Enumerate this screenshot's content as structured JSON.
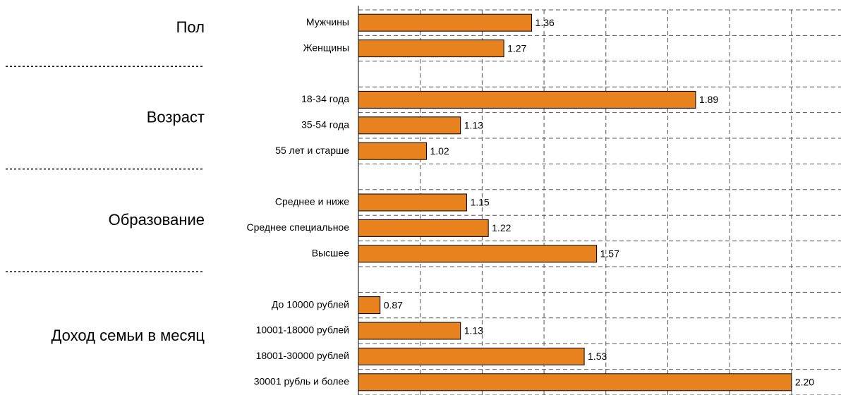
{
  "chart_data": {
    "type": "bar",
    "orientation": "horizontal",
    "color": "#e8821e",
    "xlim": [
      0.8,
      2.36
    ],
    "xticks": [
      0.8,
      1.0,
      1.2,
      1.4,
      1.6,
      1.8,
      2.0,
      2.2
    ],
    "grid": true,
    "groups": [
      {
        "name": "Пол",
        "categories": [
          "Мужчины",
          "Женщины"
        ],
        "values": [
          1.36,
          1.27
        ],
        "value_labels": [
          "1.36",
          "1.27"
        ]
      },
      {
        "name": "Возраст",
        "categories": [
          "18-34 года",
          "35-54 года",
          "55 лет и старше"
        ],
        "values": [
          1.89,
          1.13,
          1.02
        ],
        "value_labels": [
          "1.89",
          "1.13",
          "1.02"
        ]
      },
      {
        "name": "Образование",
        "categories": [
          "Среднее и ниже",
          "Среднее специальное",
          "Высшее"
        ],
        "values": [
          1.15,
          1.22,
          1.57
        ],
        "value_labels": [
          "1.15",
          "1.22",
          "1.57"
        ]
      },
      {
        "name": "Доход семьи в месяц",
        "categories": [
          "До 10000 рублей",
          "10001-18000 рублей",
          "18001-30000 рублей",
          "30001 рубль и более"
        ],
        "values": [
          0.87,
          1.13,
          1.53,
          2.2
        ],
        "value_labels": [
          "0.87",
          "1.13",
          "1.53",
          "2.20"
        ]
      }
    ]
  }
}
